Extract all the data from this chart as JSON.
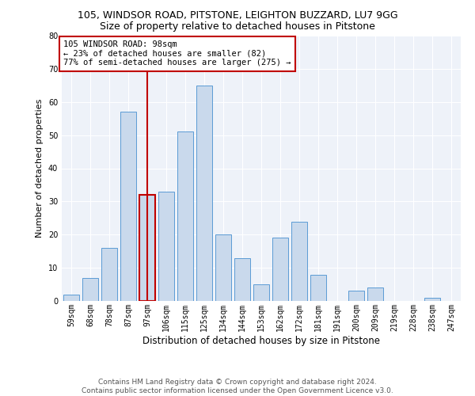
{
  "title1": "105, WINDSOR ROAD, PITSTONE, LEIGHTON BUZZARD, LU7 9GG",
  "title2": "Size of property relative to detached houses in Pitstone",
  "xlabel": "Distribution of detached houses by size in Pitstone",
  "ylabel": "Number of detached properties",
  "categories": [
    "59sqm",
    "68sqm",
    "78sqm",
    "87sqm",
    "97sqm",
    "106sqm",
    "115sqm",
    "125sqm",
    "134sqm",
    "144sqm",
    "153sqm",
    "162sqm",
    "172sqm",
    "181sqm",
    "191sqm",
    "200sqm",
    "209sqm",
    "219sqm",
    "228sqm",
    "238sqm",
    "247sqm"
  ],
  "values": [
    2,
    7,
    16,
    57,
    32,
    33,
    51,
    65,
    20,
    13,
    5,
    19,
    24,
    8,
    0,
    3,
    4,
    0,
    0,
    1,
    0
  ],
  "bar_color": "#c9d9ec",
  "bar_edge_color": "#5b9bd5",
  "highlight_bar_index": 4,
  "highlight_bar_edge_color": "#c00000",
  "vline_color": "#c00000",
  "annotation_line1": "105 WINDSOR ROAD: 98sqm",
  "annotation_line2": "← 23% of detached houses are smaller (82)",
  "annotation_line3": "77% of semi-detached houses are larger (275) →",
  "box_color": "#c00000",
  "ylim": [
    0,
    80
  ],
  "yticks": [
    0,
    10,
    20,
    30,
    40,
    50,
    60,
    70,
    80
  ],
  "footer1": "Contains HM Land Registry data © Crown copyright and database right 2024.",
  "footer2": "Contains public sector information licensed under the Open Government Licence v3.0.",
  "bg_color": "#eef2f9",
  "grid_color": "#ffffff",
  "title1_fontsize": 9,
  "title2_fontsize": 9,
  "xlabel_fontsize": 8.5,
  "ylabel_fontsize": 8,
  "tick_fontsize": 7,
  "footer_fontsize": 6.5,
  "annotation_fontsize": 7.5
}
